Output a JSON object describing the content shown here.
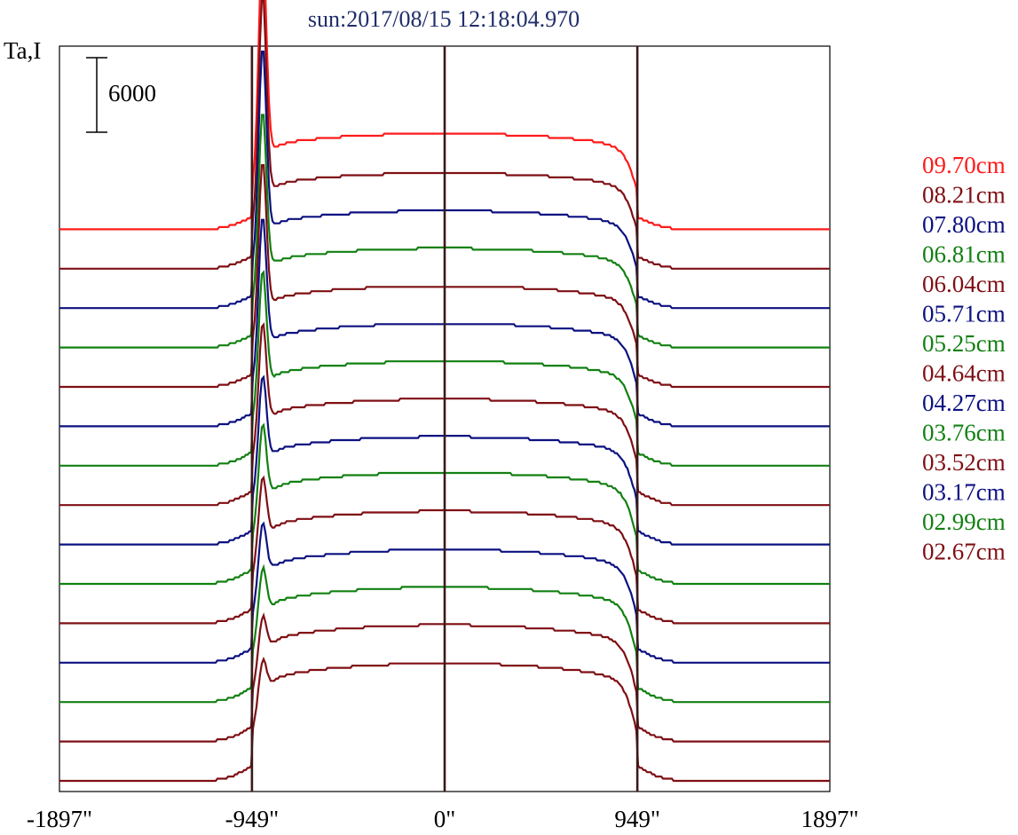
{
  "chart_data": {
    "type": "line",
    "title": "sun:2017/08/15 12:18:04.970",
    "ylabel": "Ta,I",
    "scale_bar_label": "6000",
    "scale_bar_value": 6000,
    "xlim": [
      -1897,
      1897
    ],
    "x_ticks": [
      {
        "value": -1897,
        "label": "-1897\""
      },
      {
        "value": -949,
        "label": "-949\""
      },
      {
        "value": 0,
        "label": "0\""
      },
      {
        "value": 949,
        "label": "949\""
      },
      {
        "value": 1897,
        "label": "1897\""
      }
    ],
    "vertical_lines": [
      -949,
      0,
      949
    ],
    "grid": false,
    "legend_position": "right",
    "colors": {
      "red": "#ff1a1a",
      "maroon": "#7f0f14",
      "navy": "#0c1180",
      "green": "#128012",
      "vline": "#3a1a1a"
    },
    "series": [
      {
        "name": "09.70cm",
        "color": "#ff1a1a",
        "offset": 14,
        "peak": 25000,
        "disk": 11000
      },
      {
        "name": "08.21cm",
        "color": "#7f0f14",
        "offset": 13,
        "peak": 23800,
        "disk": 11000
      },
      {
        "name": "07.80cm",
        "color": "#0c1180",
        "offset": 12,
        "peak": 22200,
        "disk": 11200
      },
      {
        "name": "06.81cm",
        "color": "#128012",
        "offset": 11,
        "peak": 19200,
        "disk": 11400
      },
      {
        "name": "06.04cm",
        "color": "#7f0f14",
        "offset": 10,
        "peak": 17800,
        "disk": 11600
      },
      {
        "name": "05.71cm",
        "color": "#0c1180",
        "offset": 9,
        "peak": 15800,
        "disk": 11800
      },
      {
        "name": "05.25cm",
        "color": "#128012",
        "offset": 8,
        "peak": 14000,
        "disk": 12000
      },
      {
        "name": "04.64cm",
        "color": "#7f0f14",
        "offset": 7,
        "peak": 12200,
        "disk": 12200
      },
      {
        "name": "04.27cm",
        "color": "#0c1180",
        "offset": 6,
        "peak": 10600,
        "disk": 12400
      },
      {
        "name": "03.76cm",
        "color": "#128012",
        "offset": 5,
        "peak": 9200,
        "disk": 12800
      },
      {
        "name": "03.52cm",
        "color": "#7f0f14",
        "offset": 4,
        "peak": 7600,
        "disk": 12900
      },
      {
        "name": "03.17cm",
        "color": "#0c1180",
        "offset": 3,
        "peak": 6800,
        "disk": 13000
      },
      {
        "name": "02.99cm",
        "color": "#128012",
        "offset": 2,
        "peak": 6000,
        "disk": 13200
      },
      {
        "name": "02.67cm",
        "color": "#7f0f14",
        "offset": 1,
        "peak": 4800,
        "disk": 13400
      }
    ],
    "bottom_trace": {
      "color": "#7f0f14",
      "offset": 0,
      "peak": 4200,
      "disk": 13500
    }
  }
}
